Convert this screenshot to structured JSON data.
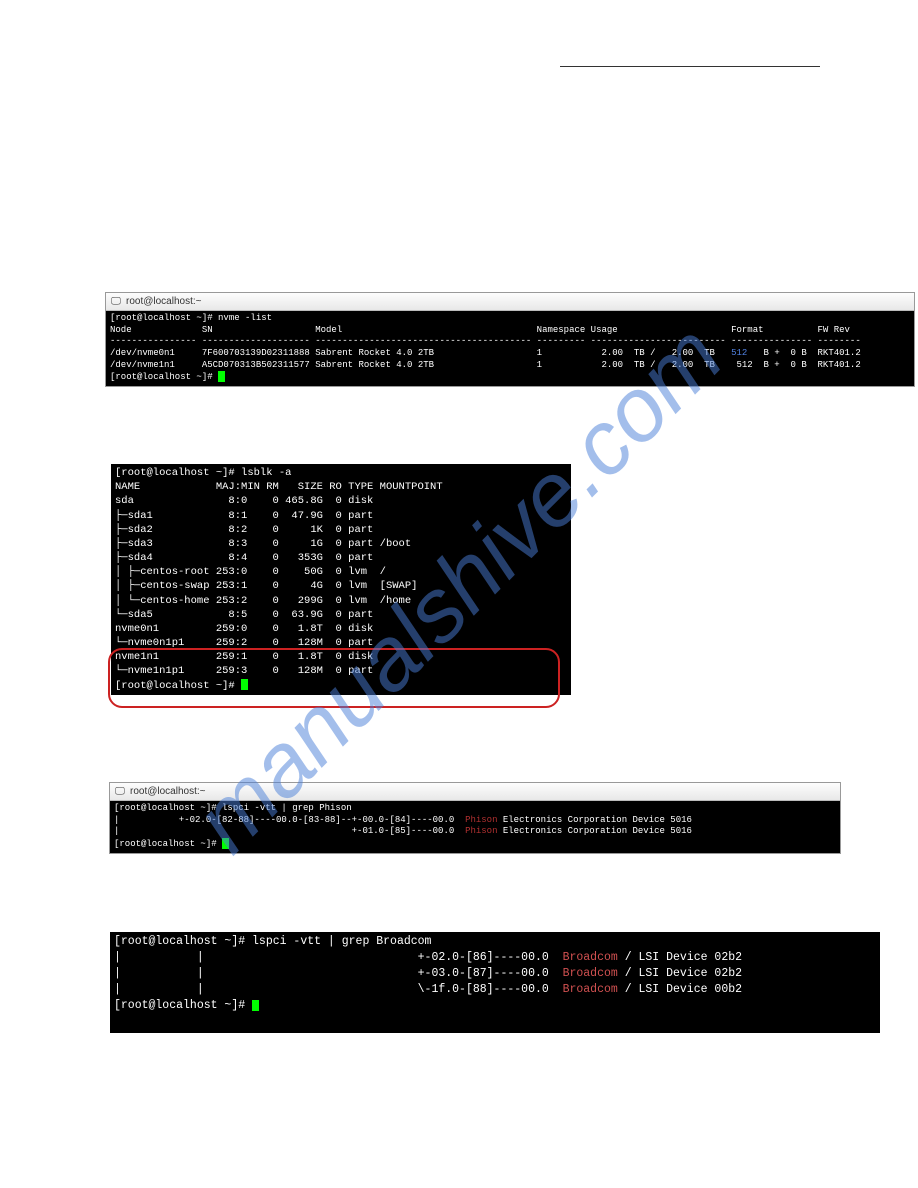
{
  "watermark": "manualshive.com",
  "titlebar": {
    "title": "root@localhost:~",
    "icon_glyph": "🖵"
  },
  "term1": {
    "prompt1": "[root@localhost ~]# nvme -list",
    "header": "Node             SN                   Model                                    Namespace Usage                     Format          FW Rev",
    "sep": "---------------- -------------------- ---------------------------------------- --------- ------------------------- --------------- --------",
    "row1": "/dev/nvme0n1     7F600703139D02311888 Sabrent Rocket 4.0 2TB                   1           2.00  TB /   2.00  TB    512  B +  0 B  RKT401.2",
    "row1_blue": "512",
    "row2": "/dev/nvme1n1     A5CD070313B502311577 Sabrent Rocket 4.0 2TB                   1           2.00  TB /   2.00  TB    512  B +  0 B  RKT401.2",
    "prompt2": "[root@localhost ~]# "
  },
  "term2": {
    "l0": "[root@localhost ~]# lsblk -a",
    "l1": "NAME            MAJ:MIN RM   SIZE RO TYPE MOUNTPOINT",
    "l2": "sda               8:0    0 465.8G  0 disk",
    "l3": "├─sda1            8:1    0  47.9G  0 part",
    "l4": "├─sda2            8:2    0     1K  0 part",
    "l5": "├─sda3            8:3    0     1G  0 part /boot",
    "l6": "├─sda4            8:4    0   353G  0 part",
    "l7": "│ ├─centos-root 253:0    0    50G  0 lvm  /",
    "l8": "│ ├─centos-swap 253:1    0     4G  0 lvm  [SWAP]",
    "l9": "│ └─centos-home 253:2    0   299G  0 lvm  /home",
    "l10": "└─sda5            8:5    0  63.9G  0 part",
    "l11": "nvme0n1         259:0    0   1.8T  0 disk",
    "l12": "└─nvme0n1p1     259:2    0   128M  0 part",
    "l13": "nvme1n1         259:1    0   1.8T  0 disk",
    "l14": "└─nvme1n1p1     259:3    0   128M  0 part",
    "l15": "[root@localhost ~]# "
  },
  "term3": {
    "l0": "[root@localhost ~]# lspci -vtt | grep Phison",
    "l1a": "|           +-02.0-[82-88]----00.0-[83-88]--+-00.0-[84]----00.0  ",
    "l1b": "Phison",
    "l1c": " Electronics Corporation Device 5016",
    "l2a": "|                                           +-01.0-[85]----00.0  ",
    "l2b": "Phison",
    "l2c": " Electronics Corporation Device 5016",
    "l3": "[root@localhost ~]# "
  },
  "term4": {
    "l0": "[root@localhost ~]# lspci -vtt | grep Broadcom",
    "l1a": "|           |                               +-02.0-[86]----00.0  ",
    "l1b": "Broadcom",
    "l1c": " / LSI Device 02b2",
    "l2a": "|           |                               +-03.0-[87]----00.0  ",
    "l2b": "Broadcom",
    "l2c": " / LSI Device 02b2",
    "l3a": "|           |                               \\-1f.0-[88]----00.0  ",
    "l3b": "Broadcom",
    "l3c": " / LSI Device 00b2",
    "l4": "[root@localhost ~]# "
  }
}
